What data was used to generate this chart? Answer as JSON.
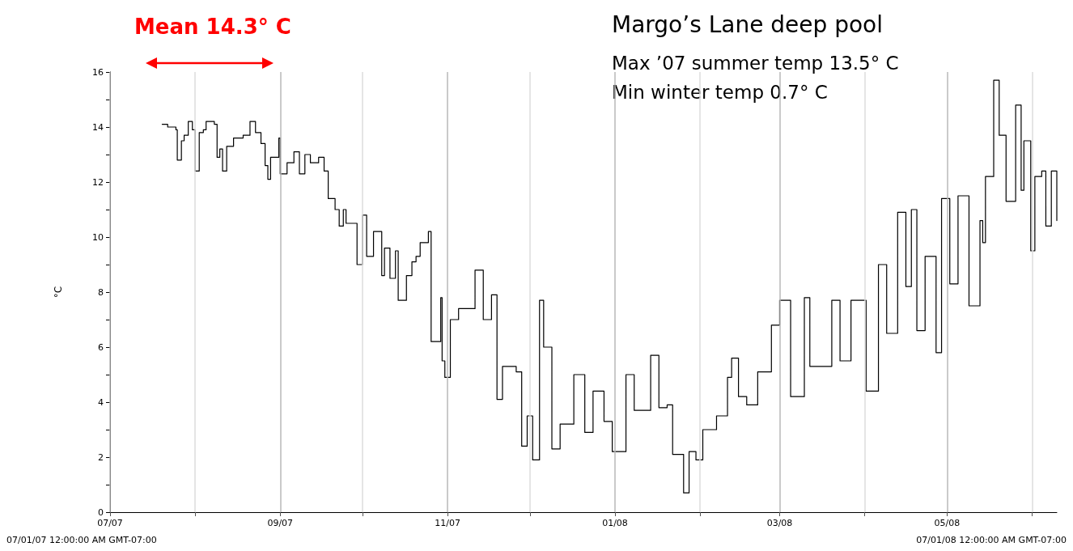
{
  "chart_data": {
    "type": "step",
    "title": "Margo’s Lane deep pool",
    "ylabel": "°C",
    "annotations": [
      "Mean 14.3° C",
      "Max ’07 summer temp 13.5° C",
      "Min winter temp 0.7° C",
      "07/01/07 12:00:00 AM GMT-07:00",
      "07/01/08 12:00:00 AM GMT-07:00"
    ],
    "xlim": [
      "2007-07-01",
      "2008-06-10"
    ],
    "xticks": [
      {
        "value": "2007-07-01",
        "label": "07/07"
      },
      {
        "value": "2007-08-01",
        "label": null
      },
      {
        "value": "2007-09-01",
        "label": "09/07"
      },
      {
        "value": "2007-10-01",
        "label": null
      },
      {
        "value": "2007-11-01",
        "label": "11/07"
      },
      {
        "value": "2007-12-01",
        "label": null
      },
      {
        "value": "2008-01-01",
        "label": "01/08"
      },
      {
        "value": "2008-02-01",
        "label": null
      },
      {
        "value": "2008-03-01",
        "label": "03/08"
      },
      {
        "value": "2008-04-01",
        "label": null
      },
      {
        "value": "2008-05-01",
        "label": "05/08"
      },
      {
        "value": "2008-06-01",
        "label": null
      }
    ],
    "ylim": [
      0,
      16
    ],
    "yticks": [
      0,
      {
        "value": 1,
        "label": null
      },
      2,
      {
        "value": 3,
        "label": null
      },
      4,
      {
        "value": 5,
        "label": null
      },
      6,
      {
        "value": 7,
        "label": null
      },
      8,
      {
        "value": 9,
        "label": null
      },
      10,
      {
        "value": 11,
        "label": null
      },
      12,
      {
        "value": 13,
        "label": null
      },
      14,
      {
        "value": 15,
        "label": null
      },
      16
    ],
    "grid": "x",
    "marker": "none",
    "line_style": "solid",
    "series": [
      {
        "color": "#000000",
        "x": [
          "2007-07-20",
          "2007-07-22",
          "2007-07-24",
          "2007-07-25",
          "2007-07-25T12:00",
          "2007-07-27",
          "2007-07-28",
          "2007-07-29T12:00",
          "2007-07-31",
          "2007-08-01",
          "2007-08-02T12:00",
          "2007-08-04",
          "2007-08-05",
          "2007-08-08",
          "2007-08-09",
          "2007-08-10",
          "2007-08-11",
          "2007-08-12T12:00",
          "2007-08-15",
          "2007-08-18T12:00",
          "2007-08-21",
          "2007-08-23",
          "2007-08-25",
          "2007-08-26T12:00",
          "2007-08-27T12:00",
          "2007-08-28T12:00",
          "2007-08-31T12:00",
          "2007-09-01",
          "2007-09-03T12:00",
          "2007-09-06",
          "2007-09-08",
          "2007-09-10",
          "2007-09-12",
          "2007-09-15",
          "2007-09-17",
          "2007-09-18T12:00",
          "2007-09-21",
          "2007-09-22T12:00",
          "2007-09-24",
          "2007-09-25",
          "2007-09-27",
          "2007-09-29",
          "2007-10-01",
          "2007-10-02T12:00",
          "2007-10-05",
          "2007-10-08",
          "2007-10-09",
          "2007-10-11",
          "2007-10-13",
          "2007-10-14",
          "2007-10-17",
          "2007-10-19",
          "2007-10-20T12:00",
          "2007-10-22",
          "2007-10-25",
          "2007-10-26",
          "2007-10-29T12:00",
          "2007-10-30",
          "2007-10-31",
          "2007-11-02",
          "2007-11-05",
          "2007-11-11",
          "2007-11-14",
          "2007-11-17",
          "2007-11-19",
          "2007-11-21",
          "2007-11-26",
          "2007-11-28",
          "2007-11-30",
          "2007-12-02",
          "2007-12-04T12:00",
          "2007-12-06",
          "2007-12-09",
          "2007-12-12",
          "2007-12-17",
          "2007-12-21",
          "2007-12-24",
          "2007-12-28",
          "2007-12-31",
          "2008-01-05",
          "2008-01-08",
          "2008-01-14",
          "2008-01-17",
          "2008-01-20",
          "2008-01-22",
          "2008-01-26",
          "2008-01-28",
          "2008-01-30T12:00",
          "2008-02-02",
          "2008-02-07",
          "2008-02-11",
          "2008-02-12T12:00",
          "2008-02-15",
          "2008-02-18",
          "2008-02-22",
          "2008-02-27",
          "2008-03-01",
          "2008-03-05",
          "2008-03-10",
          "2008-03-12",
          "2008-03-20",
          "2008-03-23",
          "2008-03-27",
          "2008-04-01T12:00",
          "2008-04-06",
          "2008-04-09",
          "2008-04-13",
          "2008-04-16",
          "2008-04-18",
          "2008-04-20",
          "2008-04-23",
          "2008-04-27",
          "2008-04-29",
          "2008-05-02",
          "2008-05-05",
          "2008-05-09",
          "2008-05-13",
          "2008-05-14",
          "2008-05-15",
          "2008-05-18",
          "2008-05-20",
          "2008-05-22T12:00",
          "2008-05-26",
          "2008-05-28",
          "2008-05-29",
          "2008-05-31T12:00",
          "2008-06-02",
          "2008-06-04T12:00",
          "2008-06-06",
          "2008-06-08",
          "2008-06-10"
        ],
        "values": [
          14.1,
          14.0,
          14.0,
          13.9,
          12.8,
          13.5,
          13.7,
          14.2,
          13.9,
          12.4,
          13.8,
          13.9,
          14.2,
          14.1,
          12.9,
          13.2,
          12.4,
          13.3,
          13.6,
          13.7,
          14.2,
          13.8,
          13.4,
          12.6,
          12.1,
          12.9,
          13.6,
          12.3,
          12.7,
          13.1,
          12.3,
          13.0,
          12.7,
          12.9,
          12.4,
          11.4,
          11.0,
          10.4,
          11.0,
          10.5,
          10.5,
          9.0,
          10.8,
          9.3,
          10.2,
          8.6,
          9.6,
          8.5,
          9.5,
          7.7,
          8.6,
          9.1,
          9.3,
          9.8,
          10.2,
          6.2,
          7.8,
          5.5,
          4.9,
          7.0,
          7.4,
          8.8,
          7.0,
          7.9,
          4.1,
          5.3,
          5.1,
          2.4,
          3.5,
          1.9,
          7.7,
          6.0,
          2.3,
          3.2,
          5.0,
          2.9,
          4.4,
          3.3,
          2.2,
          5.0,
          3.7,
          5.7,
          3.8,
          3.9,
          2.1,
          0.7,
          2.2,
          1.9,
          3.0,
          3.5,
          4.9,
          5.6,
          4.2,
          3.9,
          5.1,
          6.8,
          7.7,
          4.2,
          7.8,
          5.3,
          7.7,
          5.5,
          7.7,
          4.4,
          9.0,
          6.5,
          10.9,
          8.2,
          11.0,
          6.6,
          9.3,
          5.8,
          11.4,
          8.3,
          11.5,
          7.5,
          10.6,
          9.8,
          12.2,
          15.7,
          13.7,
          11.3,
          14.8,
          11.7,
          13.5,
          9.5,
          12.2,
          12.4,
          10.4,
          12.4,
          10.6
        ]
      }
    ]
  }
}
